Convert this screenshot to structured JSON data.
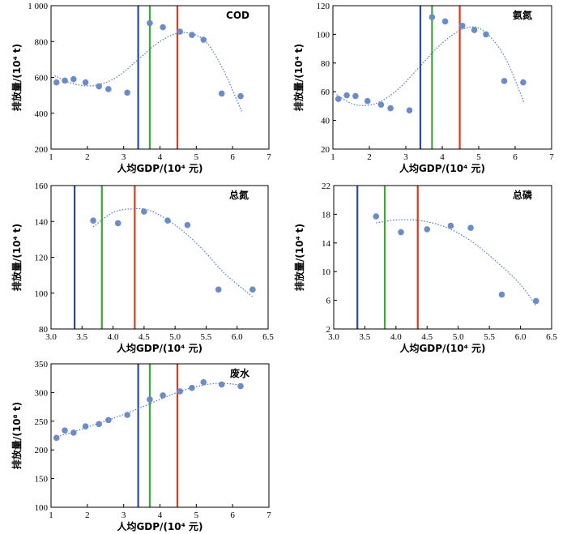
{
  "chart_data": [
    {
      "type": "scatter",
      "title": "COD",
      "xlabel": "人均GDP/(10⁴ 元)",
      "ylabel": "排放量/(10⁴ t)",
      "xlim": [
        1,
        7
      ],
      "ylim": [
        200,
        1000
      ],
      "xticks": [
        1,
        2,
        3,
        4,
        5,
        6,
        7
      ],
      "yticks": [
        200,
        400,
        600,
        800,
        1000
      ],
      "ytick_labels": [
        "200",
        "400",
        "600",
        "800",
        "1 000"
      ],
      "points": [
        {
          "x": 1.15,
          "y": 572
        },
        {
          "x": 1.38,
          "y": 582
        },
        {
          "x": 1.62,
          "y": 590
        },
        {
          "x": 1.95,
          "y": 572
        },
        {
          "x": 2.32,
          "y": 550
        },
        {
          "x": 2.58,
          "y": 535
        },
        {
          "x": 3.1,
          "y": 515
        },
        {
          "x": 3.72,
          "y": 903
        },
        {
          "x": 4.08,
          "y": 880
        },
        {
          "x": 4.55,
          "y": 855
        },
        {
          "x": 4.88,
          "y": 837
        },
        {
          "x": 5.2,
          "y": 810
        },
        {
          "x": 5.7,
          "y": 510
        },
        {
          "x": 6.22,
          "y": 495
        }
      ],
      "fit_curve": [
        {
          "x": 1.1,
          "y": 610
        },
        {
          "x": 1.6,
          "y": 565
        },
        {
          "x": 2.2,
          "y": 555
        },
        {
          "x": 2.8,
          "y": 600
        },
        {
          "x": 3.4,
          "y": 700
        },
        {
          "x": 4.0,
          "y": 800
        },
        {
          "x": 4.6,
          "y": 850
        },
        {
          "x": 5.2,
          "y": 810
        },
        {
          "x": 5.7,
          "y": 660
        },
        {
          "x": 6.25,
          "y": 410
        }
      ],
      "vlines": [
        {
          "x": 3.4,
          "color": "#2b4a9c"
        },
        {
          "x": 3.72,
          "color": "#3aa836"
        },
        {
          "x": 4.48,
          "color": "#e03a1a"
        }
      ]
    },
    {
      "type": "scatter",
      "title": "氨氮",
      "xlabel": "人均GDP/(10⁴ 元)",
      "ylabel": "排放量/(10⁴ t)",
      "xlim": [
        1,
        7
      ],
      "ylim": [
        20,
        120
      ],
      "xticks": [
        1,
        2,
        3,
        4,
        5,
        6,
        7
      ],
      "yticks": [
        20,
        40,
        60,
        80,
        100,
        120
      ],
      "points": [
        {
          "x": 1.15,
          "y": 55
        },
        {
          "x": 1.38,
          "y": 57.5
        },
        {
          "x": 1.62,
          "y": 57
        },
        {
          "x": 1.95,
          "y": 53.5
        },
        {
          "x": 2.32,
          "y": 51
        },
        {
          "x": 2.58,
          "y": 48.5
        },
        {
          "x": 3.1,
          "y": 47
        },
        {
          "x": 3.72,
          "y": 112
        },
        {
          "x": 4.08,
          "y": 109
        },
        {
          "x": 4.55,
          "y": 106
        },
        {
          "x": 4.88,
          "y": 103
        },
        {
          "x": 5.2,
          "y": 100
        },
        {
          "x": 5.7,
          "y": 67.5
        },
        {
          "x": 6.22,
          "y": 66.5
        }
      ],
      "fit_curve": [
        {
          "x": 1.1,
          "y": 58
        },
        {
          "x": 1.6,
          "y": 51
        },
        {
          "x": 2.2,
          "y": 52
        },
        {
          "x": 2.8,
          "y": 62
        },
        {
          "x": 3.4,
          "y": 78
        },
        {
          "x": 4.0,
          "y": 94
        },
        {
          "x": 4.6,
          "y": 104
        },
        {
          "x": 5.1,
          "y": 103
        },
        {
          "x": 5.7,
          "y": 85
        },
        {
          "x": 6.25,
          "y": 52
        }
      ],
      "vlines": [
        {
          "x": 3.4,
          "color": "#2b4a9c"
        },
        {
          "x": 3.72,
          "color": "#3aa836"
        },
        {
          "x": 4.48,
          "color": "#e03a1a"
        }
      ]
    },
    {
      "type": "scatter",
      "title": "总氮",
      "xlabel": "人均GDP/(10⁴ 元)",
      "ylabel": "排放量/(10⁴ t)",
      "xlim": [
        3.0,
        6.5
      ],
      "ylim": [
        80,
        160
      ],
      "xticks": [
        3.0,
        3.5,
        4.0,
        4.5,
        5.0,
        5.5,
        6.0,
        6.5
      ],
      "xtick_labels": [
        "3.0",
        "3.5",
        "4.0",
        "4.5",
        "5.0",
        "5.5",
        "6.0",
        "6.5"
      ],
      "yticks": [
        80,
        100,
        120,
        140,
        160
      ],
      "points": [
        {
          "x": 3.68,
          "y": 140.5
        },
        {
          "x": 4.08,
          "y": 139
        },
        {
          "x": 4.5,
          "y": 145.5
        },
        {
          "x": 4.88,
          "y": 140.5
        },
        {
          "x": 5.2,
          "y": 138
        },
        {
          "x": 5.7,
          "y": 102
        },
        {
          "x": 6.25,
          "y": 102
        }
      ],
      "fit_curve": [
        {
          "x": 3.68,
          "y": 137
        },
        {
          "x": 4.0,
          "y": 145
        },
        {
          "x": 4.3,
          "y": 147
        },
        {
          "x": 4.6,
          "y": 146
        },
        {
          "x": 5.0,
          "y": 138
        },
        {
          "x": 5.4,
          "y": 126
        },
        {
          "x": 5.8,
          "y": 111
        },
        {
          "x": 6.25,
          "y": 98
        }
      ],
      "vlines": [
        {
          "x": 3.38,
          "color": "#2b4a9c"
        },
        {
          "x": 3.82,
          "color": "#3aa836"
        },
        {
          "x": 4.35,
          "color": "#e03a1a"
        }
      ]
    },
    {
      "type": "scatter",
      "title": "总磷",
      "xlabel": "人均GDP/(10⁴ 元)",
      "ylabel": "排放量/(10⁴ t)",
      "xlim": [
        3.0,
        6.5
      ],
      "ylim": [
        2,
        22
      ],
      "xticks": [
        3.0,
        3.5,
        4.0,
        4.5,
        5.0,
        5.5,
        6.0,
        6.5
      ],
      "xtick_labels": [
        "3.0",
        "3.5",
        "4.0",
        "4.5",
        "5.0",
        "5.5",
        "6.0",
        "6.5"
      ],
      "yticks": [
        2,
        6,
        10,
        14,
        18,
        22
      ],
      "points": [
        {
          "x": 3.68,
          "y": 17.7
        },
        {
          "x": 4.08,
          "y": 15.5
        },
        {
          "x": 4.5,
          "y": 15.9
        },
        {
          "x": 4.88,
          "y": 16.4
        },
        {
          "x": 5.2,
          "y": 16.1
        },
        {
          "x": 5.7,
          "y": 6.8
        },
        {
          "x": 6.25,
          "y": 5.9
        }
      ],
      "fit_curve": [
        {
          "x": 3.68,
          "y": 16.8
        },
        {
          "x": 4.0,
          "y": 17.2
        },
        {
          "x": 4.4,
          "y": 17.1
        },
        {
          "x": 4.8,
          "y": 16.2
        },
        {
          "x": 5.2,
          "y": 14.3
        },
        {
          "x": 5.6,
          "y": 11.5
        },
        {
          "x": 6.0,
          "y": 8.2
        },
        {
          "x": 6.25,
          "y": 5.2
        }
      ],
      "vlines": [
        {
          "x": 3.38,
          "color": "#2b4a9c"
        },
        {
          "x": 3.82,
          "color": "#3aa836"
        },
        {
          "x": 4.35,
          "color": "#e03a1a"
        }
      ]
    },
    {
      "type": "scatter",
      "title": "废水",
      "xlabel": "人均GDP/(10⁴ 元)",
      "ylabel": "排放量/(10⁸ t)",
      "xlim": [
        1,
        7
      ],
      "ylim": [
        100,
        350
      ],
      "xticks": [
        1,
        2,
        3,
        4,
        5,
        6,
        7
      ],
      "yticks": [
        100,
        150,
        200,
        250,
        300,
        350
      ],
      "points": [
        {
          "x": 1.15,
          "y": 221
        },
        {
          "x": 1.38,
          "y": 234
        },
        {
          "x": 1.62,
          "y": 230
        },
        {
          "x": 1.95,
          "y": 241
        },
        {
          "x": 2.32,
          "y": 245
        },
        {
          "x": 2.58,
          "y": 252
        },
        {
          "x": 3.1,
          "y": 261
        },
        {
          "x": 3.72,
          "y": 288
        },
        {
          "x": 4.08,
          "y": 295
        },
        {
          "x": 4.55,
          "y": 302
        },
        {
          "x": 4.88,
          "y": 308
        },
        {
          "x": 5.2,
          "y": 318
        },
        {
          "x": 5.7,
          "y": 314
        },
        {
          "x": 6.22,
          "y": 311
        }
      ],
      "fit_curve": [
        {
          "x": 1.1,
          "y": 222
        },
        {
          "x": 1.6,
          "y": 231
        },
        {
          "x": 2.2,
          "y": 244
        },
        {
          "x": 2.8,
          "y": 257
        },
        {
          "x": 3.4,
          "y": 272
        },
        {
          "x": 4.0,
          "y": 288
        },
        {
          "x": 4.6,
          "y": 303
        },
        {
          "x": 5.2,
          "y": 313
        },
        {
          "x": 5.7,
          "y": 316
        },
        {
          "x": 6.25,
          "y": 313
        }
      ],
      "vlines": [
        {
          "x": 3.4,
          "color": "#2b4a9c"
        },
        {
          "x": 3.72,
          "color": "#3aa836"
        },
        {
          "x": 4.48,
          "color": "#e03a1a"
        }
      ]
    }
  ],
  "colors": {
    "point": "#6b8cc7",
    "fit_curve": "#4a77bf",
    "axis": "#000000"
  }
}
